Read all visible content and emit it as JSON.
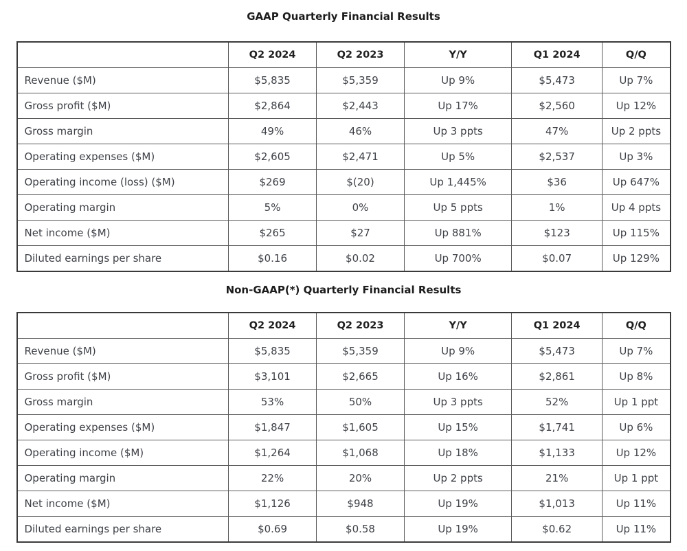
{
  "page": {
    "background": "#ffffff",
    "body_text_color": "#3e4147",
    "heading_text_color": "#1c1c1c",
    "border_color": "#585858"
  },
  "tables": [
    {
      "id": "gaap",
      "title": "GAAP Quarterly Financial Results",
      "columns": [
        "",
        "Q2 2024",
        "Q2 2023",
        "Y/Y",
        "Q1 2024",
        "Q/Q"
      ],
      "rows": [
        [
          "Revenue ($M)",
          "$5,835",
          "$5,359",
          "Up 9%",
          "$5,473",
          "Up 7%"
        ],
        [
          "Gross profit ($M)",
          "$2,864",
          "$2,443",
          "Up 17%",
          "$2,560",
          "Up 12%"
        ],
        [
          "Gross margin",
          "49%",
          "46%",
          "Up 3 ppts",
          "47%",
          "Up 2 ppts"
        ],
        [
          "Operating expenses ($M)",
          "$2,605",
          "$2,471",
          "Up 5%",
          "$2,537",
          "Up 3%"
        ],
        [
          "Operating income (loss) ($M)",
          "$269",
          "$(20)",
          "Up 1,445%",
          "$36",
          "Up 647%"
        ],
        [
          "Operating margin",
          "5%",
          "0%",
          "Up 5 ppts",
          "1%",
          "Up 4 ppts"
        ],
        [
          "Net income ($M)",
          "$265",
          "$27",
          "Up 881%",
          "$123",
          "Up 115%"
        ],
        [
          "Diluted earnings per share",
          "$0.16",
          "$0.02",
          "Up 700%",
          "$0.07",
          "Up 129%"
        ]
      ]
    },
    {
      "id": "non-gaap",
      "title": "Non-GAAP(*) Quarterly Financial Results",
      "columns": [
        "",
        "Q2 2024",
        "Q2 2023",
        "Y/Y",
        "Q1 2024",
        "Q/Q"
      ],
      "rows": [
        [
          "Revenue ($M)",
          "$5,835",
          "$5,359",
          "Up 9%",
          "$5,473",
          "Up 7%"
        ],
        [
          "Gross profit ($M)",
          "$3,101",
          "$2,665",
          "Up 16%",
          "$2,861",
          "Up 8%"
        ],
        [
          "Gross margin",
          "53%",
          "50%",
          "Up 3 ppts",
          "52%",
          "Up 1 ppt"
        ],
        [
          "Operating expenses ($M)",
          "$1,847",
          "$1,605",
          "Up 15%",
          "$1,741",
          "Up 6%"
        ],
        [
          "Operating income ($M)",
          "$1,264",
          "$1,068",
          "Up 18%",
          "$1,133",
          "Up 12%"
        ],
        [
          "Operating margin",
          "22%",
          "20%",
          "Up 2 ppts",
          "21%",
          "Up 1 ppt"
        ],
        [
          "Net income ($M)",
          "$1,126",
          "$948",
          "Up 19%",
          "$1,013",
          "Up 11%"
        ],
        [
          "Diluted earnings per share",
          "$0.69",
          "$0.58",
          "Up 19%",
          "$0.62",
          "Up 11%"
        ]
      ]
    }
  ]
}
